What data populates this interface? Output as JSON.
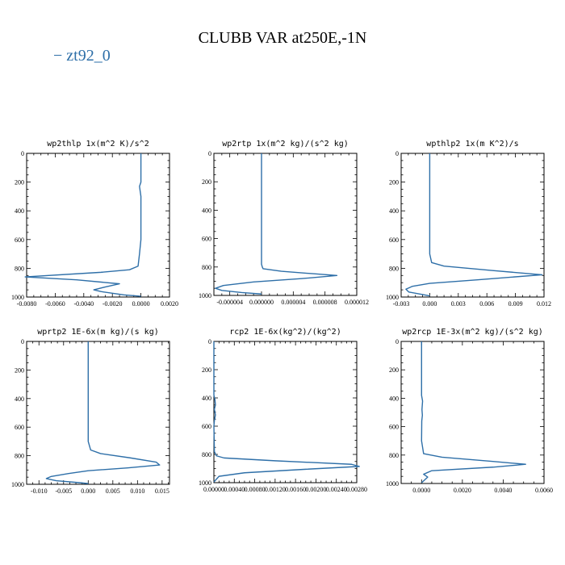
{
  "figure": {
    "title": "CLUBB VAR at250E,-1N",
    "legend": {
      "label": "zt92_0",
      "color": "#2e6fa8"
    }
  },
  "chart_data": [
    {
      "type": "line",
      "title": "wp2thlp   1x(m^2 K)/s^2",
      "series": [
        {
          "name": "zt92_0",
          "color": "#2e6fa8",
          "x": [
            0.0,
            0.0,
            0.0,
            -0.0001,
            0.0,
            0.0,
            0.0,
            0.0,
            -0.0001,
            -0.0002,
            -0.0008,
            -0.0028,
            -0.0081,
            -0.0045,
            -0.0015,
            -0.0025,
            -0.0033,
            -0.0028,
            -0.0012,
            0.0
          ],
          "y": [
            0,
            100,
            200,
            230,
            300,
            400,
            500,
            600,
            700,
            785,
            810,
            828,
            860,
            880,
            908,
            930,
            950,
            962,
            985,
            995
          ]
        }
      ],
      "xlim": [
        -0.008,
        0.002
      ],
      "ylim": [
        0,
        1000
      ],
      "xticks": [
        -0.008,
        -0.006,
        -0.004,
        -0.002,
        0.0,
        0.002
      ],
      "xticklabels": [
        "-0.0080",
        "-0.0060",
        "-0.0040",
        "-0.0020",
        "0.0000",
        "0.0020"
      ],
      "yticks": [
        0,
        200,
        400,
        600,
        800,
        1000
      ],
      "yticklabels": [
        "0",
        "200",
        "400",
        "600",
        "800",
        "1000"
      ]
    },
    {
      "type": "line",
      "title": "wp2rtp   1x(m^2 kg)/(s^2 kg)",
      "series": [
        {
          "name": "zt92_0",
          "color": "#2e6fa8",
          "x": [
            0.0,
            0.0,
            0.0,
            0.0,
            0.0,
            0.0,
            1e-07,
            2e-07,
            2.5e-06,
            9.5e-06,
            5e-06,
            -1e-06,
            -4.8e-06,
            -5.8e-06,
            -5e-06,
            -2.5e-06,
            0.0
          ],
          "y": [
            0,
            200,
            400,
            600,
            700,
            780,
            800,
            812,
            830,
            860,
            882,
            905,
            930,
            950,
            965,
            980,
            990
          ]
        }
      ],
      "xlim": [
        -6e-06,
        1.2e-05
      ],
      "ylim": [
        0,
        1000
      ],
      "xticks": [
        -4e-06,
        0.0,
        4e-06,
        8e-06,
        1.2e-05
      ],
      "xticklabels": [
        "-0.000004",
        "0.000000",
        "0.000004",
        "0.000008",
        "0.000012"
      ],
      "yticks": [
        0,
        200,
        400,
        600,
        800,
        1000
      ],
      "yticklabels": [
        "0",
        "200",
        "400",
        "600",
        "800",
        "1000"
      ]
    },
    {
      "type": "line",
      "title": "wpthlp2   1x(m K^2)/s",
      "series": [
        {
          "name": "zt92_0",
          "color": "#2e6fa8",
          "x": [
            0.0,
            0.0,
            0.0,
            0.0,
            0.0,
            0.0002,
            0.0015,
            0.0065,
            0.0118,
            0.005,
            0.0,
            -0.0018,
            -0.0025,
            -0.0022,
            -0.0008,
            0.0
          ],
          "y": [
            0,
            200,
            400,
            600,
            700,
            760,
            785,
            815,
            845,
            880,
            905,
            925,
            945,
            965,
            982,
            992
          ]
        }
      ],
      "xlim": [
        -0.003,
        0.012
      ],
      "ylim": [
        0,
        1000
      ],
      "xticks": [
        -0.003,
        0.0,
        0.003,
        0.006,
        0.009,
        0.012
      ],
      "xticklabels": [
        "-0.003",
        "0.000",
        "0.003",
        "0.006",
        "0.009",
        "0.012"
      ],
      "yticks": [
        0,
        200,
        400,
        600,
        800,
        1000
      ],
      "yticklabels": [
        "0",
        "200",
        "400",
        "600",
        "800",
        "1000"
      ]
    },
    {
      "type": "line",
      "title": "wprtp2   1E-6x(m kg)/(s kg)",
      "series": [
        {
          "name": "zt92_0",
          "color": "#2e6fa8",
          "x": [
            0.0,
            0.0,
            0.0,
            0.0,
            0.0,
            0.0005,
            0.0025,
            0.0085,
            0.0138,
            0.0145,
            0.008,
            0.0,
            -0.004,
            -0.0075,
            -0.0085,
            -0.0065,
            -0.002,
            0.0
          ],
          "y": [
            0,
            200,
            400,
            600,
            700,
            760,
            785,
            815,
            845,
            865,
            885,
            905,
            925,
            945,
            960,
            975,
            988,
            995
          ]
        }
      ],
      "xlim": [
        -0.0125,
        0.0165
      ],
      "ylim": [
        0,
        1000
      ],
      "xticks": [
        -0.01,
        -0.005,
        0.0,
        0.005,
        0.01,
        0.015
      ],
      "xticklabels": [
        "-0.010",
        "-0.005",
        "0.000",
        "0.005",
        "0.010",
        "0.015"
      ],
      "yticks": [
        0,
        200,
        400,
        600,
        800,
        1000
      ],
      "yticklabels": [
        "0",
        "200",
        "400",
        "600",
        "800",
        "1000"
      ]
    },
    {
      "type": "line",
      "title": "rcp2   1E-6x(kg^2)/(kg^2)",
      "series": [
        {
          "name": "zt92_0",
          "color": "#2e6fa8",
          "x": [
            0.0,
            0.0,
            0.0,
            2e-05,
            3e-05,
            1e-05,
            3e-05,
            1e-05,
            0.0,
            1e-05,
            5e-05,
            0.0002,
            0.0012,
            0.0027,
            0.00285,
            0.0018,
            0.0006,
            0.0001,
            0.0
          ],
          "y": [
            0,
            200,
            380,
            410,
            450,
            480,
            520,
            560,
            600,
            780,
            810,
            825,
            845,
            870,
            885,
            905,
            930,
            955,
            995
          ]
        }
      ],
      "xlim": [
        0.0,
        0.0028
      ],
      "ylim": [
        0,
        1000
      ],
      "xticks": [
        0.0,
        0.0004,
        0.0008,
        0.0012,
        0.0016,
        0.002,
        0.0024,
        0.0028
      ],
      "xticklabels": [
        "0.00000",
        "0.00040",
        "0.00080",
        "0.00120",
        "0.00160",
        "0.00200",
        "0.00240",
        "0.00280"
      ],
      "yticks": [
        0,
        200,
        400,
        600,
        800,
        1000
      ],
      "yticklabels": [
        "0",
        "200",
        "400",
        "600",
        "800",
        "1000"
      ]
    },
    {
      "type": "line",
      "title": "wp2rcp   1E-3x(m^2 kg)/(s^2 kg)",
      "series": [
        {
          "name": "zt92_0",
          "color": "#2e6fa8",
          "x": [
            0.0,
            0.0,
            0.0,
            5e-05,
            2e-05,
            4e-05,
            1e-05,
            0.0,
            0.0001,
            0.001,
            0.0035,
            0.0051,
            0.0035,
            0.0005,
            0.0001,
            0.0003,
            0.00015,
            0.0
          ],
          "y": [
            0,
            200,
            380,
            420,
            480,
            520,
            560,
            700,
            790,
            815,
            845,
            865,
            885,
            910,
            935,
            955,
            975,
            995
          ]
        }
      ],
      "xlim": [
        -0.001,
        0.006
      ],
      "ylim": [
        0,
        1000
      ],
      "xticks": [
        0.0,
        0.002,
        0.004,
        0.006
      ],
      "xticklabels": [
        "0.0000",
        "0.0020",
        "0.0040",
        "0.0060"
      ],
      "yticks": [
        0,
        200,
        400,
        600,
        800,
        1000
      ],
      "yticklabels": [
        "0",
        "200",
        "400",
        "600",
        "800",
        "1000"
      ]
    }
  ]
}
